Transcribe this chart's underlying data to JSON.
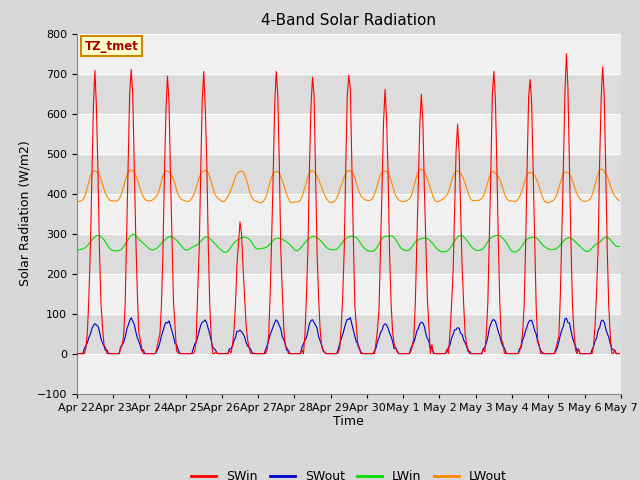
{
  "title": "4-Band Solar Radiation",
  "xlabel": "Time",
  "ylabel": "Solar Radiation (W/m2)",
  "ylim": [
    -100,
    800
  ],
  "xlim": [
    0,
    360
  ],
  "x_tick_labels": [
    "Apr 22",
    "Apr 23",
    "Apr 24",
    "Apr 25",
    "Apr 26",
    "Apr 27",
    "Apr 28",
    "Apr 29",
    "Apr 30",
    "May 1",
    "May 2",
    "May 3",
    "May 4",
    "May 5",
    "May 6",
    "May 7"
  ],
  "x_tick_positions": [
    0,
    24,
    48,
    72,
    96,
    120,
    144,
    168,
    192,
    216,
    240,
    264,
    288,
    312,
    336,
    360
  ],
  "colors": {
    "SWin": "#ff0000",
    "SWout": "#0000cc",
    "LWin": "#00dd00",
    "LWout": "#ff8800"
  },
  "legend_labels": [
    "SWin",
    "SWout",
    "LWin",
    "LWout"
  ],
  "annotation_text": "TZ_tmet",
  "annotation_bg": "#ffffcc",
  "annotation_border": "#cc8800",
  "bg_color": "#d8d8d8",
  "plot_bg_light": "#f0f0f0",
  "plot_bg_dark": "#dcdcdc",
  "grid_color": "#ffffff",
  "title_fontsize": 11,
  "label_fontsize": 9,
  "tick_fontsize": 8,
  "band_yticks": [
    -100,
    0,
    100,
    200,
    300,
    400,
    500,
    600,
    700,
    800
  ]
}
